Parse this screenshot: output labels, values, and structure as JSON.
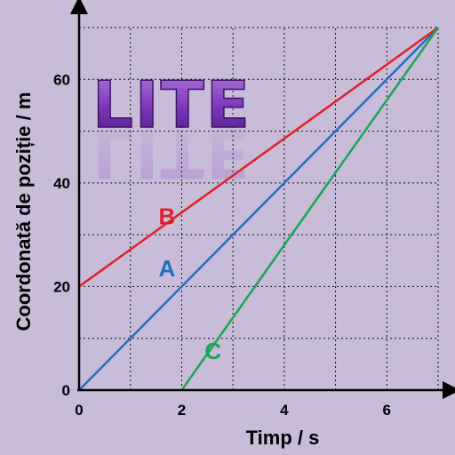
{
  "logo": {
    "text": "LITE"
  },
  "chart_data": {
    "type": "line",
    "xlabel": "Timp / s",
    "ylabel": "Coordonată de poziție / m",
    "xlim": [
      0,
      7
    ],
    "ylim": [
      0,
      70
    ],
    "x_ticks": [
      0,
      2,
      4,
      6
    ],
    "y_ticks": [
      0,
      20,
      40,
      60
    ],
    "grid": true,
    "series": [
      {
        "name": "A",
        "color": "#1f6fc0",
        "x": [
          0,
          7
        ],
        "y": [
          0,
          70
        ]
      },
      {
        "name": "B",
        "color": "#e0202a",
        "x": [
          0,
          7
        ],
        "y": [
          20,
          70
        ]
      },
      {
        "name": "C",
        "color": "#1aa55a",
        "x": [
          2,
          7
        ],
        "y": [
          0,
          70
        ]
      }
    ]
  }
}
